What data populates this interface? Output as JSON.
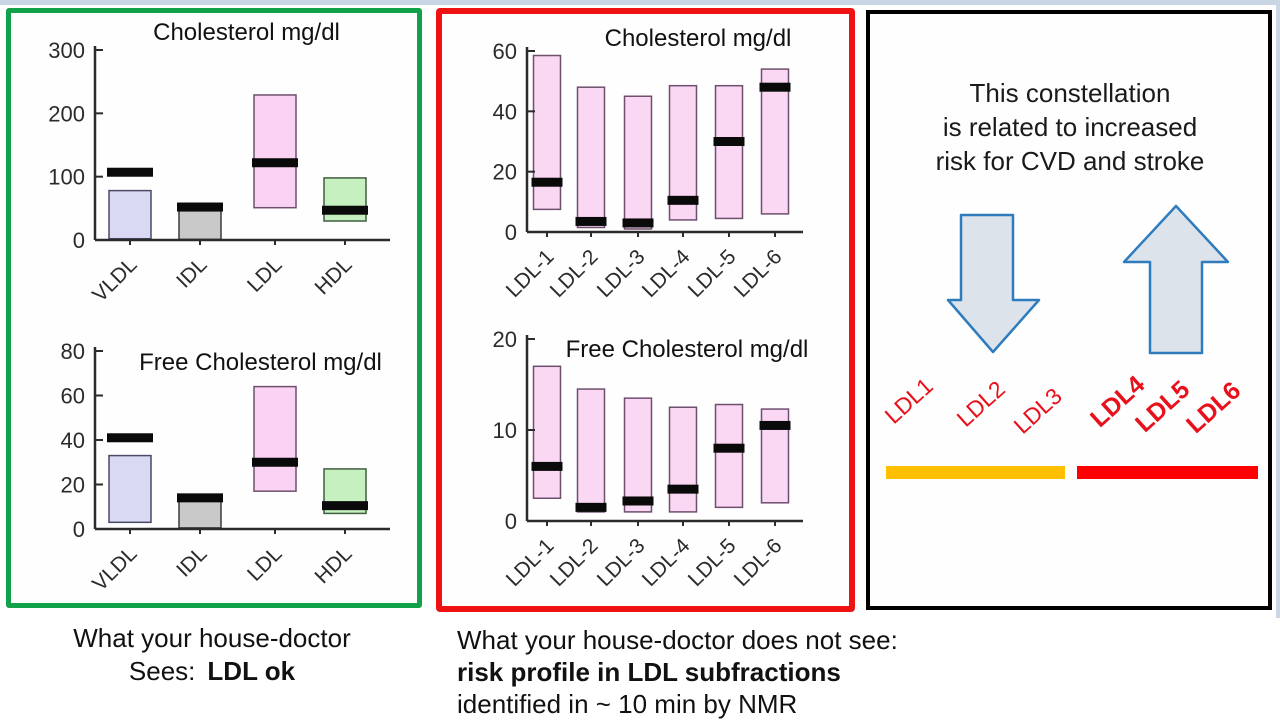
{
  "page": {
    "background": "#ffffff",
    "edge_strip_color": "#c9d5e2"
  },
  "panels": {
    "left": {
      "border_color": "#12a14b"
    },
    "middle": {
      "border_color": "#ef1212"
    },
    "right": {
      "border_color": "#000000",
      "headline_lines": [
        "This constellation",
        "is related to increased",
        "risk for CVD and stroke"
      ],
      "arrow_fill": "#dce3eb",
      "arrow_stroke": "#2e7cbe",
      "arrows": [
        {
          "name": "down-arrow"
        },
        {
          "name": "up-arrow"
        }
      ],
      "label_color": "#e8111b",
      "ldl_labels": [
        {
          "text": "LDL1",
          "bold": false
        },
        {
          "text": "LDL2",
          "bold": false
        },
        {
          "text": "LDL3",
          "bold": false
        },
        {
          "text": "LDL4",
          "bold": true
        },
        {
          "text": "LDL5",
          "bold": true
        },
        {
          "text": "LDL6",
          "bold": true
        }
      ],
      "underline_bars": [
        {
          "name": "ldl123-underline",
          "color": "#ffc000"
        },
        {
          "name": "ldl456-underline",
          "color": "#ff0000"
        }
      ]
    }
  },
  "chart_data": [
    {
      "type": "box-range",
      "panel": "left",
      "title": "Cholesterol mg/dl",
      "ylim": [
        0,
        300
      ],
      "yticks": [
        0,
        100,
        200,
        300
      ],
      "categories": [
        "VLDL",
        "IDL",
        "LDL",
        "HDL"
      ],
      "marker_color": "#0a0a0a",
      "boxes": [
        {
          "label": "VLDL",
          "lo": 2,
          "hi": 78,
          "median": 107,
          "fill": "#d9d9f3",
          "stroke": "#4a4a66"
        },
        {
          "label": "IDL",
          "lo": 1,
          "hi": 58,
          "median": 52,
          "fill": "#c9c9c9",
          "stroke": "#3a3a3a"
        },
        {
          "label": "LDL",
          "lo": 51,
          "hi": 229,
          "median": 122,
          "fill": "#fad2f4",
          "stroke": "#6e4f6e"
        },
        {
          "label": "HDL",
          "lo": 30,
          "hi": 98,
          "median": 47,
          "fill": "#c7f0c0",
          "stroke": "#3f5f3f"
        }
      ]
    },
    {
      "type": "box-range",
      "panel": "left",
      "title": "Free Cholesterol mg/dl",
      "ylim": [
        0,
        80
      ],
      "yticks": [
        0,
        20,
        40,
        60,
        80
      ],
      "categories": [
        "VLDL",
        "IDL",
        "LDL",
        "HDL"
      ],
      "marker_color": "#0a0a0a",
      "boxes": [
        {
          "label": "VLDL",
          "lo": 3,
          "hi": 33,
          "median": 41,
          "fill": "#d9d9f3",
          "stroke": "#4a4a66"
        },
        {
          "label": "IDL",
          "lo": 0.5,
          "hi": 15.5,
          "median": 14,
          "fill": "#c9c9c9",
          "stroke": "#3a3a3a"
        },
        {
          "label": "LDL",
          "lo": 17,
          "hi": 64,
          "median": 30,
          "fill": "#fad2f4",
          "stroke": "#6e4f6e"
        },
        {
          "label": "HDL",
          "lo": 7,
          "hi": 27,
          "median": 10.5,
          "fill": "#c7f0c0",
          "stroke": "#3f5f3f"
        }
      ]
    },
    {
      "type": "box-range",
      "panel": "middle",
      "title": "Cholesterol mg/dl",
      "ylim": [
        0,
        60
      ],
      "yticks": [
        0,
        20,
        40,
        60
      ],
      "categories": [
        "LDL-1",
        "LDL-2",
        "LDL-3",
        "LDL-4",
        "LDL-5",
        "LDL-6"
      ],
      "marker_color": "#0a0a0a",
      "boxes": [
        {
          "label": "LDL-1",
          "lo": 7.5,
          "hi": 58.5,
          "median": 16.5,
          "fill": "#fad7f3",
          "stroke": "#6e4f6e"
        },
        {
          "label": "LDL-2",
          "lo": 1.5,
          "hi": 48,
          "median": 3.5,
          "fill": "#fad7f3",
          "stroke": "#6e4f6e"
        },
        {
          "label": "LDL-3",
          "lo": 1,
          "hi": 45,
          "median": 3,
          "fill": "#fad7f3",
          "stroke": "#6e4f6e"
        },
        {
          "label": "LDL-4",
          "lo": 4,
          "hi": 48.5,
          "median": 10.5,
          "fill": "#fad7f3",
          "stroke": "#6e4f6e"
        },
        {
          "label": "LDL-5",
          "lo": 4.5,
          "hi": 48.5,
          "median": 30,
          "fill": "#fad7f3",
          "stroke": "#6e4f6e"
        },
        {
          "label": "LDL-6",
          "lo": 6,
          "hi": 54,
          "median": 48,
          "fill": "#fad7f3",
          "stroke": "#6e4f6e"
        }
      ]
    },
    {
      "type": "box-range",
      "panel": "middle",
      "title": "Free Cholesterol mg/dl",
      "ylim": [
        0,
        20
      ],
      "yticks": [
        0,
        10,
        20
      ],
      "categories": [
        "LDL-1",
        "LDL-2",
        "LDL-3",
        "LDL-4",
        "LDL-5",
        "LDL-6"
      ],
      "marker_color": "#0a0a0a",
      "boxes": [
        {
          "label": "LDL-1",
          "lo": 2.5,
          "hi": 17,
          "median": 6,
          "fill": "#fad7f3",
          "stroke": "#6e4f6e"
        },
        {
          "label": "LDL-2",
          "lo": 1,
          "hi": 14.5,
          "median": 1.5,
          "fill": "#fad7f3",
          "stroke": "#6e4f6e"
        },
        {
          "label": "LDL-3",
          "lo": 1,
          "hi": 13.5,
          "median": 2.2,
          "fill": "#fad7f3",
          "stroke": "#6e4f6e"
        },
        {
          "label": "LDL-4",
          "lo": 1,
          "hi": 12.5,
          "median": 3.5,
          "fill": "#fad7f3",
          "stroke": "#6e4f6e"
        },
        {
          "label": "LDL-5",
          "lo": 1.5,
          "hi": 12.8,
          "median": 8,
          "fill": "#fad7f3",
          "stroke": "#6e4f6e"
        },
        {
          "label": "LDL-6",
          "lo": 2,
          "hi": 12.3,
          "median": 10.5,
          "fill": "#fad7f3",
          "stroke": "#6e4f6e"
        }
      ]
    }
  ],
  "captions": {
    "left": {
      "line1": "What your house-doctor",
      "line2_prefix": "Sees:",
      "line2_bold": "LDL ok"
    },
    "middle": {
      "line1": "What your house-doctor does not see:",
      "line2": "risk profile in LDL subfractions",
      "line3": "identified in ~ 10 min by NMR"
    }
  }
}
